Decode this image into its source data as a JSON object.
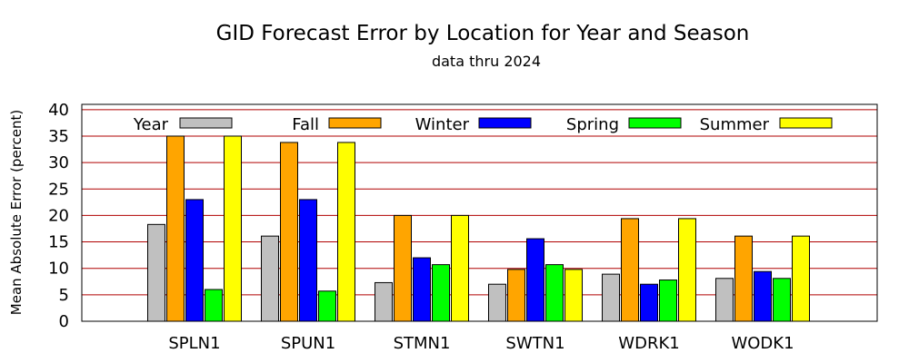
{
  "chart_data": {
    "type": "bar",
    "title": "GID Forecast Error by Location for Year and Season",
    "subtitle": "data thru 2024",
    "xlabel": "",
    "ylabel": "Mean Absolute Error (percent)",
    "ylim": [
      0,
      41
    ],
    "y_ticks": [
      "0",
      "5",
      "10",
      "15",
      "20",
      "25",
      "30",
      "35",
      "40"
    ],
    "grid": "horizontal at y-ticks",
    "grid_color": "#b00000",
    "legend_position": "top, inside plot",
    "categories": [
      "SPLN1",
      "SPUN1",
      "STMN1",
      "SWTN1",
      "WDRK1",
      "WODK1"
    ],
    "series": [
      {
        "name": "Year",
        "color": "#c0c0c0",
        "values": [
          18.3,
          16.1,
          7.3,
          7.0,
          8.9,
          8.1
        ]
      },
      {
        "name": "Fall",
        "color": "#ffa500",
        "values": [
          35.0,
          33.8,
          20.0,
          9.8,
          19.4,
          16.1
        ]
      },
      {
        "name": "Winter",
        "color": "#0000ff",
        "values": [
          23.0,
          23.0,
          12.0,
          15.6,
          7.0,
          9.4
        ]
      },
      {
        "name": "Spring",
        "color": "#00ff00",
        "values": [
          6.0,
          5.7,
          10.7,
          10.7,
          7.8,
          8.1
        ]
      },
      {
        "name": "Summer",
        "color": "#ffff00",
        "values": [
          35.0,
          33.8,
          20.0,
          9.8,
          19.4,
          16.1
        ]
      }
    ]
  }
}
